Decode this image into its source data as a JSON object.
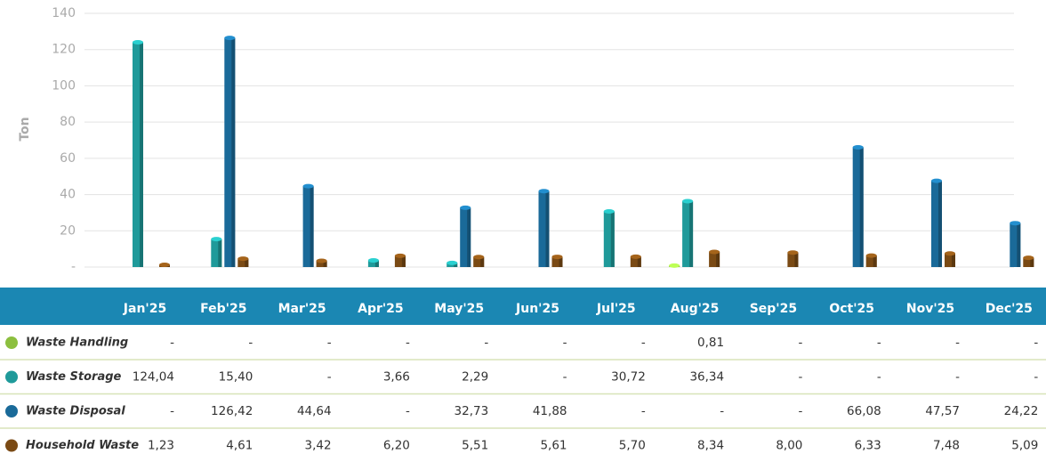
{
  "chart_data": {
    "type": "bar",
    "y_label": "Ton",
    "categories": [
      "Jan'25",
      "Feb'25",
      "Mar'25",
      "Apr'25",
      "May'25",
      "Jun'25",
      "Jul'25",
      "Aug'25",
      "Sep'25",
      "Oct'25",
      "Nov'25",
      "Dec'25"
    ],
    "series": [
      {
        "name": "Waste Handling",
        "color": "#8cbf3f",
        "values": [
          null,
          null,
          null,
          null,
          null,
          null,
          null,
          0.81,
          null,
          null,
          null,
          null
        ],
        "value_labels": [
          "-",
          "-",
          "-",
          "-",
          "-",
          "-",
          "-",
          "0,81",
          "-",
          "-",
          "-",
          "-"
        ]
      },
      {
        "name": "Waste Storage",
        "color": "#1f9a9a",
        "values": [
          124.04,
          15.4,
          null,
          3.66,
          2.29,
          null,
          30.72,
          36.34,
          null,
          null,
          null,
          null
        ],
        "value_labels": [
          "124,04",
          "15,40",
          "-",
          "3,66",
          "2,29",
          "-",
          "30,72",
          "36,34",
          "-",
          "-",
          "-",
          "-"
        ]
      },
      {
        "name": "Waste Disposal",
        "color": "#1a6a99",
        "values": [
          null,
          126.42,
          44.64,
          null,
          32.73,
          41.88,
          null,
          null,
          null,
          66.08,
          47.57,
          24.22
        ],
        "value_labels": [
          "-",
          "126,42",
          "44,64",
          "-",
          "32,73",
          "41,88",
          "-",
          "-",
          "-",
          "66,08",
          "47,57",
          "24,22"
        ]
      },
      {
        "name": "Household Waste",
        "color": "#7a4a14",
        "values": [
          1.23,
          4.61,
          3.42,
          6.2,
          5.51,
          5.61,
          5.7,
          8.34,
          8.0,
          6.33,
          7.48,
          5.09
        ],
        "value_labels": [
          "1,23",
          "4,61",
          "3,42",
          "6,20",
          "5,51",
          "5,61",
          "5,70",
          "8,34",
          "8,00",
          "6,33",
          "7,48",
          "5,09"
        ]
      }
    ],
    "ylim": [
      0,
      140
    ],
    "yticks": [
      {
        "value": 0,
        "label": "-"
      },
      20,
      40,
      60,
      80,
      100,
      120,
      140
    ],
    "grid": true
  }
}
